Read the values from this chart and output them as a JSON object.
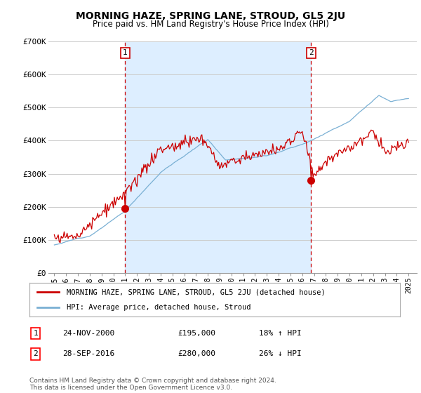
{
  "title": "MORNING HAZE, SPRING LANE, STROUD, GL5 2JU",
  "subtitle": "Price paid vs. HM Land Registry's House Price Index (HPI)",
  "ylim": [
    0,
    700000
  ],
  "yticks": [
    0,
    100000,
    200000,
    300000,
    400000,
    500000,
    600000,
    700000
  ],
  "ytick_labels": [
    "£0",
    "£100K",
    "£200K",
    "£300K",
    "£400K",
    "£500K",
    "£600K",
    "£700K"
  ],
  "sale1_date_num": 2001.0,
  "sale1_price": 195000,
  "sale2_date_num": 2016.75,
  "sale2_price": 280000,
  "line1_color": "#cc0000",
  "line2_color": "#7ab0d4",
  "vline_color": "#cc0000",
  "shade_color": "#ddeeff",
  "background_color": "#ffffff",
  "grid_color": "#cccccc",
  "legend1_label": "MORNING HAZE, SPRING LANE, STROUD, GL5 2JU (detached house)",
  "legend2_label": "HPI: Average price, detached house, Stroud",
  "footer": "Contains HM Land Registry data © Crown copyright and database right 2024.\nThis data is licensed under the Open Government Licence v3.0."
}
